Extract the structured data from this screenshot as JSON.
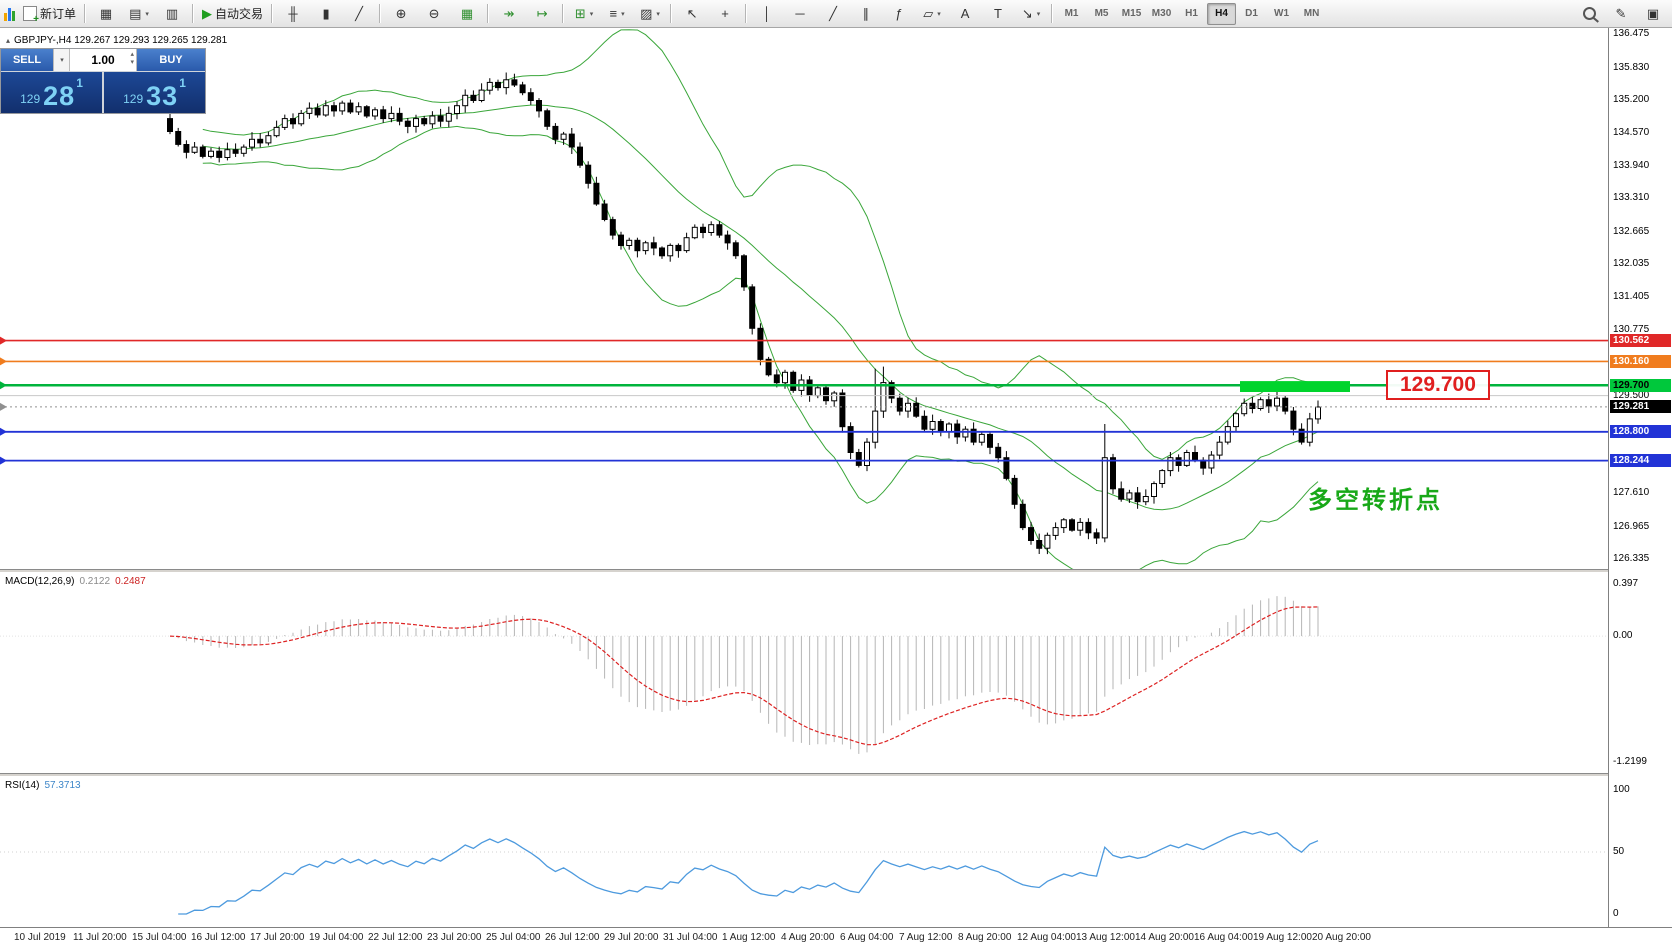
{
  "toolbar": {
    "new_order": {
      "label": "新订单"
    },
    "auto_trading": {
      "label": "自动交易"
    },
    "icon_groups": [
      {
        "icons": [
          {
            "n": "new-chart-icon",
            "g": "▦"
          },
          {
            "n": "profiles-icon",
            "g": "▤",
            "c": 1
          },
          {
            "n": "data-window-icon",
            "g": "▥"
          }
        ]
      },
      {
        "icons": [
          {
            "n": "bar-chart-icon",
            "g": "╫"
          },
          {
            "n": "candlestick-chart-icon",
            "g": "▮"
          },
          {
            "n": "line-chart-icon",
            "g": "╱"
          }
        ]
      },
      {
        "icons": [
          {
            "n": "zoom-in-icon",
            "g": "⊕"
          },
          {
            "n": "zoom-out-icon",
            "g": "⊖"
          },
          {
            "n": "tile-windows-icon",
            "g": "▦",
            "col": "#2f8f2f"
          }
        ]
      },
      {
        "icons": [
          {
            "n": "auto-scroll-icon",
            "g": "↠",
            "col": "#2f8f2f"
          },
          {
            "n": "chart-shift-icon",
            "g": "↦",
            "col": "#2f8f2f"
          }
        ]
      },
      {
        "icons": [
          {
            "n": "indicators-icon",
            "g": "⊞",
            "col": "#2f8f2f",
            "c": 1
          },
          {
            "n": "periods-icon",
            "g": "≡",
            "c": 1
          },
          {
            "n": "templates-icon",
            "g": "▨",
            "c": 1
          }
        ]
      },
      {
        "icons": [
          {
            "n": "cursor-icon",
            "g": "↖"
          },
          {
            "n": "crosshair-icon",
            "g": "+"
          }
        ]
      },
      {
        "icons": [
          {
            "n": "vertical-line-icon",
            "g": "│"
          },
          {
            "n": "horizontal-line-icon",
            "g": "─"
          },
          {
            "n": "trendline-icon",
            "g": "╱"
          },
          {
            "n": "channel-icon",
            "g": "∥"
          },
          {
            "n": "fibonacci-icon",
            "g": "ƒ"
          },
          {
            "n": "shapes-icon",
            "g": "▱",
            "c": 1
          },
          {
            "n": "text-icon",
            "g": "A"
          },
          {
            "n": "label-icon",
            "g": "T"
          },
          {
            "n": "arrows-icon",
            "g": "↘",
            "c": 1
          }
        ]
      }
    ],
    "timeframes": [
      "M1",
      "M5",
      "M15",
      "M30",
      "H1",
      "H4",
      "D1",
      "W1",
      "MN"
    ],
    "active_timeframe": "H4"
  },
  "quote": {
    "sell_label": "SELL",
    "buy_label": "BUY",
    "lot": "1.00",
    "sell_small": "129",
    "sell_big": "28",
    "sell_pip": "1",
    "buy_small": "129",
    "buy_big": "33",
    "buy_pip": "1"
  },
  "chart": {
    "symbol_info": "GBPJPY-,H4  129.267 129.293 129.265 129.281",
    "annotations": {
      "level_label": "129.700",
      "turning_point": "多空转折点"
    },
    "macd": {
      "name": "MACD(12,26,9)",
      "value_main": "0.2122",
      "value_signal": "0.2487",
      "scale": [
        "0.397",
        "0.00",
        "-1.2199"
      ]
    },
    "rsi": {
      "name": "RSI(14)",
      "value": "57.3713",
      "scale": [
        "100",
        "50",
        "0"
      ]
    },
    "price_scale_ticks": [
      "136.475",
      "135.830",
      "135.200",
      "134.570",
      "133.940",
      "133.310",
      "132.665",
      "132.035",
      "131.405",
      "130.775",
      "129.500",
      "127.610",
      "126.965",
      "126.335"
    ],
    "badges": [
      {
        "text": "130.562",
        "price": 130.562,
        "bg": "#e02828",
        "fg": "#ffffff"
      },
      {
        "text": "130.160",
        "price": 130.16,
        "bg": "#f07c1e",
        "fg": "#ffffff"
      },
      {
        "text": "129.700",
        "price": 129.7,
        "bg": "#00c83c",
        "fg": "#000000"
      },
      {
        "text": "129.281",
        "price": 129.281,
        "bg": "#000000",
        "fg": "#ffffff"
      },
      {
        "text": "128.800",
        "price": 128.8,
        "bg": "#2233d6",
        "fg": "#ffffff"
      },
      {
        "text": "128.244",
        "price": 128.244,
        "bg": "#2233d6",
        "fg": "#ffffff"
      }
    ],
    "hlines": [
      {
        "price": 130.562,
        "color": "#e02828",
        "width": 1.6,
        "dash": "",
        "marker": true
      },
      {
        "price": 130.16,
        "color": "#f07c1e",
        "width": 1.6,
        "dash": "",
        "marker": true
      },
      {
        "price": 129.7,
        "color": "#00b43c",
        "width": 2.5,
        "dash": "",
        "marker": true
      },
      {
        "price": 129.5,
        "color": "#c8c8c8",
        "width": 1,
        "dash": "",
        "marker": false
      },
      {
        "price": 129.281,
        "color": "#909090",
        "width": 1,
        "dash": "2,3",
        "marker": true
      },
      {
        "price": 128.8,
        "color": "#2233d6",
        "width": 1.8,
        "dash": "",
        "marker": true
      },
      {
        "price": 128.244,
        "color": "#2233d6",
        "width": 1.8,
        "dash": "",
        "marker": true
      }
    ],
    "highlight_rect": {
      "x": 1240,
      "width": 110,
      "price_top": 129.78,
      "price_bottom": 129.57,
      "color": "#00d42c"
    },
    "time_axis": [
      "10 Jul 2019",
      "11 Jul 20:00",
      "15 Jul 04:00",
      "16 Jul 12:00",
      "17 Jul 20:00",
      "19 Jul 04:00",
      "22 Jul 12:00",
      "23 Jul 20:00",
      "25 Jul 04:00",
      "26 Jul 12:00",
      "29 Jul 20:00",
      "31 Jul 04:00",
      "1 Aug 12:00",
      "4 Aug 20:00",
      "6 Aug 04:00",
      "7 Aug 12:00",
      "8 Aug 20:00",
      "12 Aug 04:00",
      "13 Aug 12:00",
      "14 Aug 20:00",
      "16 Aug 04:00",
      "19 Aug 12:00",
      "20 Aug 20:00"
    ]
  },
  "chart_data": {
    "type": "candlestick",
    "symbol": "GBPJPY-",
    "timeframe": "H4",
    "current_bar": {
      "open": 129.267,
      "high": 129.293,
      "low": 129.265,
      "close": 129.281
    },
    "ylim": [
      126.335,
      136.475
    ],
    "first_open": 134.85,
    "closes": [
      134.6,
      134.35,
      134.2,
      134.3,
      134.12,
      134.22,
      134.1,
      134.25,
      134.18,
      134.3,
      134.45,
      134.38,
      134.52,
      134.68,
      134.85,
      134.75,
      134.95,
      135.05,
      134.92,
      135.1,
      135.0,
      135.15,
      134.98,
      135.08,
      134.9,
      135.02,
      134.85,
      134.95,
      134.8,
      134.7,
      134.85,
      134.75,
      134.9,
      134.8,
      134.95,
      135.1,
      135.3,
      135.2,
      135.4,
      135.55,
      135.45,
      135.6,
      135.5,
      135.35,
      135.2,
      135.0,
      134.7,
      134.45,
      134.55,
      134.3,
      133.95,
      133.6,
      133.2,
      132.9,
      132.6,
      132.4,
      132.5,
      132.3,
      132.45,
      132.35,
      132.2,
      132.4,
      132.3,
      132.55,
      132.75,
      132.65,
      132.8,
      132.6,
      132.45,
      132.2,
      131.6,
      130.8,
      130.2,
      129.9,
      129.75,
      129.95,
      129.6,
      129.8,
      129.5,
      129.65,
      129.4,
      129.55,
      128.9,
      128.4,
      128.15,
      128.6,
      129.2,
      129.75,
      129.45,
      129.2,
      129.35,
      129.1,
      128.85,
      129.0,
      128.8,
      128.95,
      128.7,
      128.85,
      128.6,
      128.75,
      128.5,
      128.3,
      127.9,
      127.4,
      126.95,
      126.7,
      126.55,
      126.8,
      126.95,
      127.1,
      126.9,
      127.05,
      126.85,
      126.75,
      128.3,
      127.7,
      127.5,
      127.62,
      127.45,
      127.55,
      127.8,
      128.05,
      128.3,
      128.15,
      128.4,
      128.25,
      128.1,
      128.35,
      128.6,
      128.9,
      129.15,
      129.35,
      129.25,
      129.42,
      129.3,
      129.45,
      129.2,
      128.85,
      128.6,
      129.05,
      129.28
    ],
    "wick_overrides": {
      "0": {
        "h": 134.95
      },
      "41": {
        "h": 135.74
      },
      "86": {
        "h": 130.02
      },
      "87": {
        "h": 130.06
      },
      "106": {
        "l": 126.44
      },
      "114": {
        "h": 128.95
      }
    },
    "indicators": {
      "bollinger_period": 20,
      "bollinger_dev": 2,
      "macd": [
        12,
        26,
        9
      ],
      "rsi": 14
    },
    "levels": [
      130.562,
      130.16,
      129.7,
      129.5,
      128.8,
      128.244
    ]
  }
}
